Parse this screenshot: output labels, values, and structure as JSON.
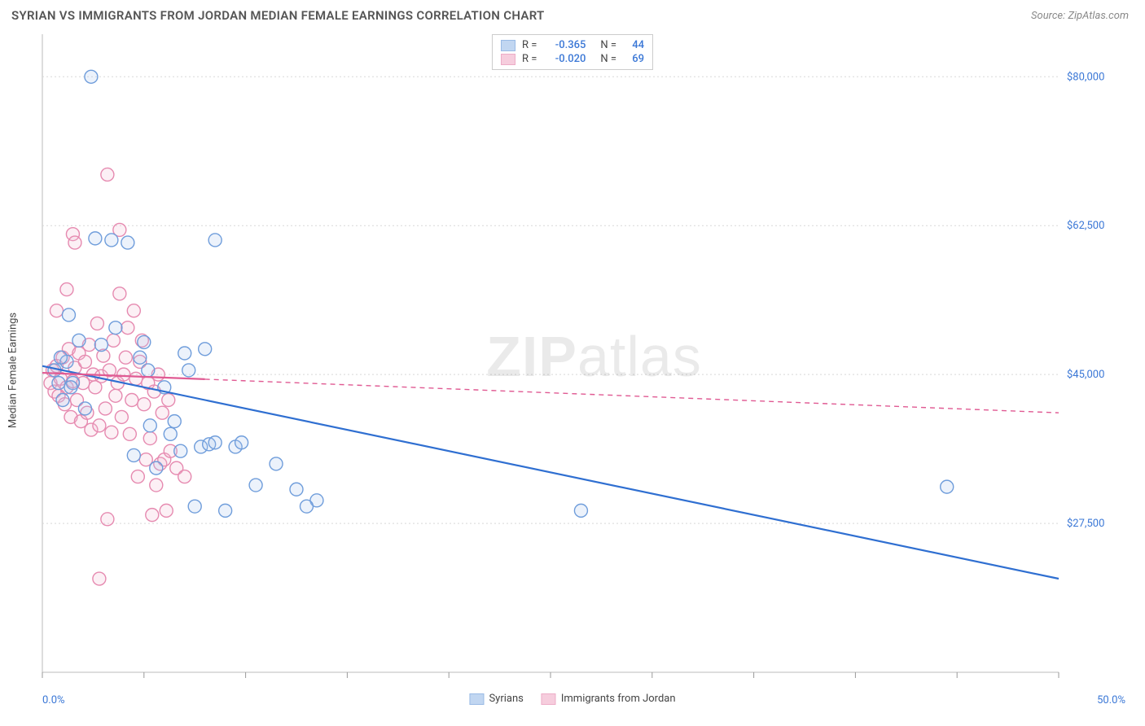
{
  "title": "SYRIAN VS IMMIGRANTS FROM JORDAN MEDIAN FEMALE EARNINGS CORRELATION CHART",
  "source_label": "Source: ",
  "source_name": "ZipAtlas.com",
  "watermark_bold": "ZIP",
  "watermark_light": "atlas",
  "chart": {
    "type": "scatter",
    "ylabel": "Median Female Earnings",
    "xlim": [
      0.0,
      50.0
    ],
    "ylim": [
      10000,
      85000
    ],
    "x_tick_label_min": "0.0%",
    "x_tick_label_max": "50.0%",
    "x_ticks": [
      0,
      5,
      10,
      15,
      20,
      25,
      30,
      35,
      40,
      45,
      50
    ],
    "y_gridlines": [
      27500,
      45000,
      62500,
      80000
    ],
    "y_tick_labels": [
      "$27,500",
      "$45,000",
      "$62,500",
      "$80,000"
    ],
    "background_color": "#ffffff",
    "grid_color": "#d8d8d8",
    "axis_color": "#bbbbbb",
    "tick_color": "#999999",
    "ylabel_fontsize": 13,
    "title_fontsize": 15,
    "marker_radius": 8,
    "marker_stroke_width": 1.4,
    "marker_fill_opacity": 0.22,
    "trend_line_width": 2.2,
    "trend_dash": "6 5",
    "series": [
      {
        "name": "Syrians",
        "color_stroke": "#6f9ddb",
        "color_fill": "#a8c6ec",
        "trend_color": "#2f6fd1",
        "R": "-0.365",
        "N": "44",
        "trend": {
          "x1": 0.0,
          "y1": 46000,
          "x2": 50.0,
          "y2": 21000,
          "solid_until_x": 50.0
        },
        "points": [
          [
            2.4,
            80000
          ],
          [
            0.6,
            45500
          ],
          [
            0.8,
            44000
          ],
          [
            1.0,
            42000
          ],
          [
            1.2,
            46500
          ],
          [
            1.3,
            52000
          ],
          [
            1.5,
            44000
          ],
          [
            1.8,
            49000
          ],
          [
            2.1,
            41000
          ],
          [
            2.6,
            61000
          ],
          [
            2.9,
            48500
          ],
          [
            3.4,
            60800
          ],
          [
            3.6,
            50500
          ],
          [
            4.2,
            60500
          ],
          [
            4.5,
            35500
          ],
          [
            4.8,
            47000
          ],
          [
            5.0,
            48800
          ],
          [
            5.2,
            45500
          ],
          [
            5.3,
            39000
          ],
          [
            5.6,
            34000
          ],
          [
            6.0,
            43500
          ],
          [
            6.3,
            38000
          ],
          [
            6.5,
            39500
          ],
          [
            6.8,
            36000
          ],
          [
            7.0,
            47500
          ],
          [
            7.2,
            45500
          ],
          [
            7.5,
            29500
          ],
          [
            7.8,
            36500
          ],
          [
            8.0,
            48000
          ],
          [
            8.2,
            36800
          ],
          [
            8.5,
            37000
          ],
          [
            8.5,
            60800
          ],
          [
            9.0,
            29000
          ],
          [
            9.5,
            36500
          ],
          [
            9.8,
            37000
          ],
          [
            10.5,
            32000
          ],
          [
            11.5,
            34500
          ],
          [
            12.5,
            31500
          ],
          [
            13.5,
            30200
          ],
          [
            13.0,
            29500
          ],
          [
            26.5,
            29000
          ],
          [
            44.5,
            31800
          ],
          [
            1.4,
            43500
          ],
          [
            0.9,
            47000
          ]
        ]
      },
      {
        "name": "Immigrants from Jordan",
        "color_stroke": "#e68ab0",
        "color_fill": "#f3b9d0",
        "trend_color": "#e05a93",
        "R": "-0.020",
        "N": "69",
        "trend": {
          "x1": 0.0,
          "y1": 45200,
          "x2": 50.0,
          "y2": 40500,
          "solid_until_x": 8.0
        },
        "points": [
          [
            0.4,
            44000
          ],
          [
            0.5,
            45500
          ],
          [
            0.6,
            43000
          ],
          [
            0.7,
            46000
          ],
          [
            0.8,
            42500
          ],
          [
            0.9,
            44500
          ],
          [
            1.0,
            47000
          ],
          [
            1.1,
            41500
          ],
          [
            1.2,
            43500
          ],
          [
            1.3,
            48000
          ],
          [
            1.4,
            40000
          ],
          [
            1.5,
            44200
          ],
          [
            1.6,
            45800
          ],
          [
            1.7,
            42000
          ],
          [
            1.8,
            47500
          ],
          [
            1.5,
            61500
          ],
          [
            1.9,
            39500
          ],
          [
            2.0,
            44000
          ],
          [
            2.1,
            46500
          ],
          [
            2.2,
            40500
          ],
          [
            2.3,
            48500
          ],
          [
            2.4,
            38500
          ],
          [
            2.5,
            45000
          ],
          [
            2.6,
            43500
          ],
          [
            2.7,
            51000
          ],
          [
            2.8,
            39000
          ],
          [
            2.9,
            44800
          ],
          [
            3.0,
            47200
          ],
          [
            3.1,
            41000
          ],
          [
            3.2,
            68500
          ],
          [
            3.3,
            45500
          ],
          [
            3.4,
            38200
          ],
          [
            3.5,
            49000
          ],
          [
            3.6,
            42500
          ],
          [
            3.7,
            44000
          ],
          [
            3.8,
            54500
          ],
          [
            3.8,
            62000
          ],
          [
            3.9,
            40000
          ],
          [
            4.0,
            45000
          ],
          [
            4.1,
            47000
          ],
          [
            4.2,
            50500
          ],
          [
            4.3,
            38000
          ],
          [
            4.4,
            42000
          ],
          [
            4.5,
            52500
          ],
          [
            4.6,
            44500
          ],
          [
            4.7,
            33000
          ],
          [
            4.8,
            46500
          ],
          [
            4.9,
            49000
          ],
          [
            5.0,
            41500
          ],
          [
            5.1,
            35000
          ],
          [
            5.2,
            44000
          ],
          [
            5.3,
            37500
          ],
          [
            5.4,
            28500
          ],
          [
            5.5,
            43000
          ],
          [
            5.6,
            32000
          ],
          [
            5.7,
            45000
          ],
          [
            5.8,
            34500
          ],
          [
            5.9,
            40500
          ],
          [
            6.0,
            35000
          ],
          [
            6.1,
            29000
          ],
          [
            6.2,
            42000
          ],
          [
            6.3,
            36000
          ],
          [
            6.6,
            34000
          ],
          [
            7.0,
            33000
          ],
          [
            2.8,
            21000
          ],
          [
            3.2,
            28000
          ],
          [
            1.6,
            60500
          ],
          [
            0.7,
            52500
          ],
          [
            1.2,
            55000
          ]
        ]
      }
    ]
  },
  "legend_top": {
    "r_label": "R =",
    "n_label": "N ="
  },
  "legend_bottom": [
    {
      "series_index": 0
    },
    {
      "series_index": 1
    }
  ]
}
